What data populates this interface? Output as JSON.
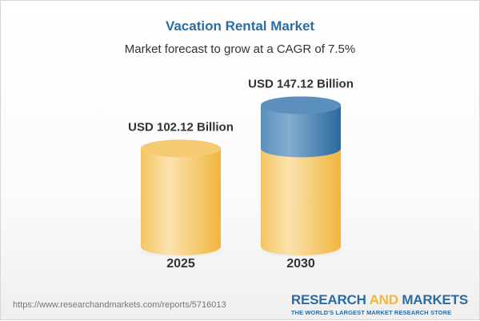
{
  "chart_data": {
    "type": "bar",
    "style": "3d-cylinder",
    "title": "Vacation Rental Market",
    "subtitle": "Market forecast to grow at a CAGR of 7.5%",
    "categories": [
      "2025",
      "2030"
    ],
    "values": [
      102.12,
      147.12
    ],
    "data_labels": [
      "USD 102.12 Billion",
      "USD 147.12 Billion"
    ],
    "unit": "USD Billion",
    "grid": false,
    "colors": {
      "base": "#f2c15a",
      "growth": "#4a83b3"
    }
  },
  "footer": {
    "url": "https://www.researchandmarkets.com/reports/5716013",
    "logo_part1": "RESEARCH ",
    "logo_part2": "AND",
    "logo_part3": " MARKETS",
    "tagline": "THE WORLD'S LARGEST MARKET RESEARCH STORE"
  }
}
